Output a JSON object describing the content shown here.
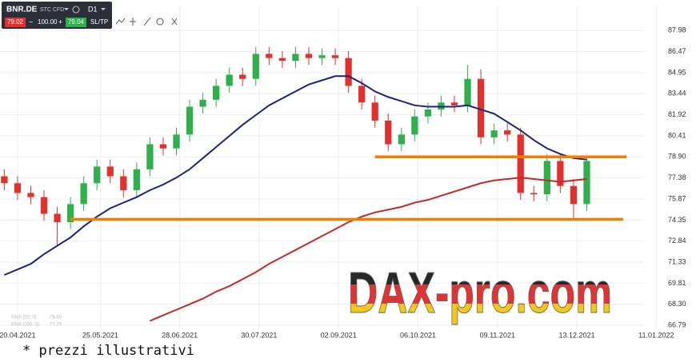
{
  "toolbar": {
    "symbol": "BNR.DE",
    "product": "STC CFD",
    "timeframe": "D1",
    "sell": "79.02",
    "volume": "100.00",
    "buy": "79.04",
    "order": "SL/TP"
  },
  "chart_data": {
    "type": "candlestick",
    "x": [
      -4,
      0,
      4,
      8,
      12,
      16,
      20,
      24,
      28,
      32,
      36,
      40,
      44,
      48,
      52,
      56,
      60,
      64,
      68,
      72,
      76,
      80,
      84,
      88,
      92,
      96,
      100,
      104,
      108,
      112,
      116,
      120,
      124,
      128,
      132,
      136,
      140,
      144,
      148,
      152,
      156,
      160,
      164,
      168,
      172
    ],
    "open": [
      77.5,
      77.0,
      76.3,
      76.0,
      74.8,
      74.2,
      75.5,
      77.0,
      78.2,
      77.5,
      76.5,
      78.0,
      79.8,
      79.5,
      80.5,
      82.5,
      83.0,
      84.0,
      84.8,
      84.5,
      86.3,
      86.0,
      85.8,
      86.3,
      86.0,
      86.2,
      86.0,
      84.0,
      82.8,
      81.5,
      79.8,
      80.5,
      81.8,
      82.3,
      82.8,
      82.6,
      84.5,
      80.3,
      80.8,
      80.5,
      76.3,
      76.2,
      78.6,
      76.8,
      75.5
    ],
    "high": [
      78.0,
      77.5,
      76.8,
      76.5,
      75.3,
      76.0,
      77.5,
      78.7,
      78.7,
      78.0,
      78.5,
      80.3,
      80.3,
      81.0,
      83.0,
      83.5,
      84.5,
      85.3,
      85.3,
      86.8,
      86.8,
      86.5,
      86.8,
      86.8,
      86.7,
      86.7,
      86.5,
      84.5,
      83.3,
      82.0,
      81.0,
      82.3,
      82.8,
      83.3,
      83.3,
      85.5,
      85.2,
      81.3,
      81.3,
      81.0,
      76.8,
      79.1,
      79.1,
      77.3,
      78.9
    ],
    "low": [
      76.5,
      75.8,
      75.5,
      74.3,
      72.5,
      73.7,
      75.0,
      76.5,
      77.0,
      76.0,
      76.0,
      77.5,
      79.0,
      79.0,
      80.0,
      82.0,
      82.5,
      83.5,
      84.0,
      84.0,
      85.5,
      85.3,
      85.3,
      85.5,
      85.5,
      85.5,
      83.5,
      82.3,
      81.0,
      79.3,
      79.3,
      80.0,
      81.3,
      81.8,
      82.1,
      82.1,
      79.8,
      79.8,
      80.0,
      75.8,
      75.7,
      75.7,
      76.3,
      74.3,
      75.0
    ],
    "close": [
      77.0,
      76.3,
      76.0,
      74.8,
      74.2,
      75.5,
      77.0,
      78.2,
      77.5,
      76.5,
      78.0,
      79.8,
      79.5,
      80.5,
      82.5,
      83.0,
      84.0,
      84.8,
      84.5,
      86.3,
      86.0,
      85.8,
      86.3,
      86.0,
      86.2,
      86.0,
      84.0,
      82.8,
      81.5,
      79.8,
      80.5,
      81.8,
      82.3,
      82.8,
      82.6,
      84.5,
      80.3,
      80.8,
      80.5,
      76.3,
      76.2,
      78.6,
      76.8,
      75.5,
      78.6
    ],
    "up_color": "#2fb04c",
    "down_color": "#e0312f",
    "lines": [
      {
        "name": "EMA (50, 0)",
        "last": 78.69,
        "color": "#1a237e",
        "values": [
          70.4,
          70.8,
          71.2,
          71.9,
          72.5,
          73.1,
          73.9,
          74.6,
          75.2,
          75.6,
          76.0,
          76.5,
          76.9,
          77.4,
          78.0,
          78.8,
          79.6,
          80.4,
          81.2,
          81.9,
          82.6,
          83.1,
          83.6,
          84.1,
          84.4,
          84.7,
          84.7,
          84.2,
          83.6,
          83.2,
          82.9,
          82.6,
          82.5,
          82.5,
          82.5,
          82.6,
          82.3,
          82.0,
          81.4,
          80.8,
          80.1,
          79.5,
          79.1,
          78.8,
          78.7
        ]
      },
      {
        "name": "EMA (200, 0)",
        "last": 77.29,
        "color": "#c62828",
        "values": [
          null,
          null,
          null,
          null,
          null,
          null,
          null,
          null,
          null,
          null,
          null,
          67.1,
          67.5,
          67.9,
          68.3,
          68.7,
          69.2,
          69.6,
          70.1,
          70.6,
          71.2,
          71.7,
          72.2,
          72.7,
          73.2,
          73.7,
          74.2,
          74.6,
          74.9,
          75.1,
          75.3,
          75.6,
          75.8,
          76.1,
          76.4,
          76.7,
          77.0,
          77.2,
          77.3,
          77.4,
          77.3,
          77.2,
          77.1,
          77.2,
          77.3
        ]
      }
    ],
    "levels": [
      {
        "value": 78.9,
        "x": [
          108,
          184
        ]
      },
      {
        "value": 74.4,
        "x": [
          16,
          183
        ]
      }
    ],
    "level_color": "#f57c00",
    "xlim": [
      -5.3,
      205
    ],
    "ylim": [
      66.5,
      89.6
    ],
    "xticks": [
      {
        "value": 0,
        "label": "20.04.2021"
      },
      {
        "value": 25,
        "label": "25.05.2021"
      },
      {
        "value": 49,
        "label": "28.06.2021"
      },
      {
        "value": 73,
        "label": "30.07.2021"
      },
      {
        "value": 97,
        "label": "02.09.2021"
      },
      {
        "value": 121,
        "label": "06.10.2021"
      },
      {
        "value": 145,
        "label": "09.11.2021"
      },
      {
        "value": 169,
        "label": "13.12.2021"
      },
      {
        "value": 193,
        "label": "11.01.2022"
      }
    ],
    "yticks": [
      87.98,
      86.47,
      84.95,
      83.44,
      81.92,
      80.41,
      {
        "value": 78.9,
        "label": "78.90"
      },
      77.38,
      75.87,
      74.35,
      72.84,
      71.33,
      69.81,
      {
        "value": 68.3,
        "label": "68.30"
      },
      66.79
    ],
    "grid": true
  },
  "watermark": "DAX-pro.com",
  "footnote": "* prezzi illustrativi"
}
